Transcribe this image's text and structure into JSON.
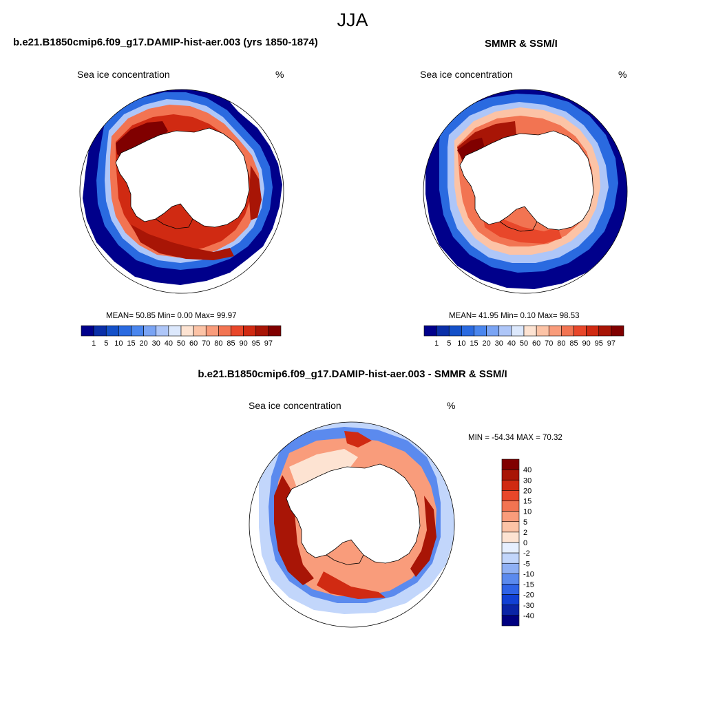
{
  "figure": {
    "season": "JJA"
  },
  "panels": [
    {
      "id": "model",
      "title": "b.e21.B1850cmip6.f09_g17.DAMIP-hist-aer.003 (yrs 1850-1874)",
      "left_label": "Sea ice concentration",
      "right_label": "%",
      "stats_text": "MEAN=  50.85  Min=   0.00  Max=  99.97"
    },
    {
      "id": "obs",
      "title": "SMMR & SSM/I",
      "left_label": "Sea ice concentration",
      "right_label": "%",
      "stats_text": "MEAN=  41.95  Min=   0.10  Max=  98.53"
    },
    {
      "id": "diff",
      "title": "b.e21.B1850cmip6.f09_g17.DAMIP-hist-aer.003 - SMMR & SSM/I",
      "left_label": "Sea ice concentration",
      "right_label": "%",
      "stats_text": "MIN = -54.34 MAX =  70.32"
    }
  ],
  "chart_data": [
    {
      "type": "heatmap",
      "panel": "model",
      "field": "Sea ice concentration",
      "units": "%",
      "mean": 50.85,
      "min": 0.0,
      "max": 99.97,
      "colorbar_levels": [
        1,
        5,
        10,
        15,
        20,
        30,
        40,
        50,
        60,
        70,
        80,
        85,
        90,
        95,
        97
      ],
      "colorbar_colors": [
        "#00008b",
        "#0a2fa8",
        "#1450c8",
        "#2a6ae0",
        "#4a86ee",
        "#7aa4f4",
        "#aec6f8",
        "#dce8fc",
        "#fde3d2",
        "#fcc3a6",
        "#f99c7b",
        "#f27452",
        "#e8472a",
        "#d02a12",
        "#a81506",
        "#800000"
      ]
    },
    {
      "type": "heatmap",
      "panel": "obs",
      "field": "Sea ice concentration",
      "units": "%",
      "mean": 41.95,
      "min": 0.1,
      "max": 98.53,
      "colorbar_levels": [
        1,
        5,
        10,
        15,
        20,
        30,
        40,
        50,
        60,
        70,
        80,
        85,
        90,
        95,
        97
      ],
      "colorbar_colors": [
        "#00008b",
        "#0a2fa8",
        "#1450c8",
        "#2a6ae0",
        "#4a86ee",
        "#7aa4f4",
        "#aec6f8",
        "#dce8fc",
        "#fde3d2",
        "#fcc3a6",
        "#f99c7b",
        "#f27452",
        "#e8472a",
        "#d02a12",
        "#a81506",
        "#800000"
      ]
    },
    {
      "type": "heatmap",
      "panel": "diff",
      "field": "Sea ice concentration",
      "units": "%",
      "min": -54.34,
      "max": 70.32,
      "colorbar_levels": [
        40,
        30,
        20,
        15,
        10,
        5,
        2,
        0,
        -2,
        -5,
        -10,
        -15,
        -20,
        -30,
        -40
      ],
      "colorbar_colors": [
        "#800000",
        "#a81506",
        "#d02a12",
        "#e8472a",
        "#f27452",
        "#f99c7b",
        "#fcc3a6",
        "#fde3d2",
        "#e6efff",
        "#c2d6fb",
        "#8fb0f4",
        "#5b8aee",
        "#2f63e6",
        "#1140d4",
        "#0a24a6",
        "#000080"
      ]
    }
  ]
}
